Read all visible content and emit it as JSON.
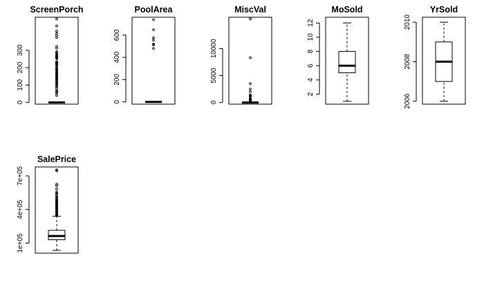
{
  "chart_data": [
    {
      "type": "boxplot",
      "title": "ScreenPorch",
      "ylim": [
        -10,
        490
      ],
      "ticks": [
        0,
        100,
        200,
        300
      ],
      "tick_labels": [
        "0",
        "100",
        "200",
        "300"
      ],
      "box": {
        "min": 0,
        "q1": 0,
        "median": 0,
        "q3": 0,
        "max": 0
      },
      "outliers": [
        40,
        53,
        60,
        63,
        70,
        80,
        90,
        95,
        100,
        108,
        110,
        115,
        120,
        125,
        130,
        135,
        140,
        144,
        147,
        150,
        153,
        155,
        160,
        165,
        168,
        170,
        175,
        180,
        185,
        190,
        192,
        195,
        200,
        210,
        216,
        220,
        224,
        225,
        227,
        233,
        234,
        252,
        255,
        259,
        260,
        263,
        265,
        266,
        271,
        276,
        280,
        287,
        291,
        312,
        322,
        374,
        385,
        396,
        410,
        440,
        480
      ]
    },
    {
      "type": "boxplot",
      "title": "PoolArea",
      "ylim": [
        -20,
        760
      ],
      "ticks": [
        0,
        200,
        400,
        600
      ],
      "tick_labels": [
        "0",
        "200",
        "400",
        "600"
      ],
      "box": {
        "min": 0,
        "q1": 0,
        "median": 0,
        "q3": 0,
        "max": 0
      },
      "outliers": [
        480,
        512,
        519,
        555,
        576,
        648,
        738
      ]
    },
    {
      "type": "boxplot",
      "title": "MiscVal",
      "ylim": [
        -300,
        15800
      ],
      "ticks": [
        0,
        5000,
        10000
      ],
      "tick_labels": [
        "0",
        "5000",
        "10000"
      ],
      "box": {
        "min": 0,
        "q1": 0,
        "median": 0,
        "q3": 0,
        "max": 0
      },
      "outliers": [
        54,
        300,
        350,
        400,
        450,
        480,
        500,
        560,
        600,
        620,
        700,
        800,
        1150,
        1200,
        1300,
        1400,
        2000,
        2500,
        3500,
        8300,
        15500
      ]
    },
    {
      "type": "boxplot",
      "title": "MoSold",
      "ylim": [
        0.6,
        12.8
      ],
      "ticks": [
        2,
        4,
        6,
        8,
        10,
        12
      ],
      "tick_labels": [
        "2",
        "4",
        "6",
        "8",
        "10",
        "12"
      ],
      "box": {
        "min": 1,
        "q1": 5,
        "median": 6,
        "q3": 8,
        "max": 12
      },
      "outliers": []
    },
    {
      "type": "boxplot",
      "title": "YrSold",
      "ylim": [
        2005.85,
        2010.25
      ],
      "ticks": [
        2006,
        2008,
        2010
      ],
      "tick_labels": [
        "2006",
        "2008",
        "2010"
      ],
      "box": {
        "min": 2006,
        "q1": 2007,
        "median": 2008,
        "q3": 2009,
        "max": 2010
      },
      "outliers": []
    },
    {
      "type": "boxplot",
      "title": "SalePrice",
      "ylim": [
        10000,
        780000
      ],
      "ticks": [
        100000,
        400000,
        700000
      ],
      "tick_labels": [
        "1e+05",
        "4e+05",
        "7e+05"
      ],
      "box": {
        "min": 34900,
        "q1": 129975,
        "median": 163000,
        "q3": 214000,
        "max": 340000
      },
      "outliers": [
        345000,
        350000,
        355000,
        360000,
        365000,
        370000,
        375000,
        380000,
        385000,
        390000,
        395000,
        400000,
        405000,
        410000,
        415000,
        420000,
        425000,
        430000,
        435000,
        440000,
        445000,
        450000,
        455000,
        460000,
        465000,
        470000,
        475000,
        480000,
        485000,
        495000,
        500000,
        510000,
        520000,
        535000,
        545000,
        555000,
        582933,
        611657,
        625000,
        745000,
        755000
      ]
    }
  ]
}
